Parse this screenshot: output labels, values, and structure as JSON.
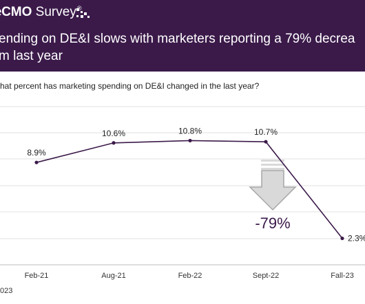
{
  "header": {
    "brand_prefix": "e",
    "brand_bold": "CMO",
    "brand_rest": " Survey",
    "brand_mark": "®",
    "headline_line1": "ending on DE&I slows with marketers reporting a 79% decrea",
    "headline_line2": "m last year",
    "background_color": "#3b1a4a"
  },
  "question": "hat percent has marketing spending on DE&I changed in the last year?",
  "footer": "023",
  "chart_data": {
    "type": "line",
    "categories": [
      "Feb-21",
      "Aug-21",
      "Feb-22",
      "Sept-22",
      "Fall-23"
    ],
    "series": [
      {
        "values": [
          8.9,
          10.6,
          10.8,
          10.7,
          2.3
        ],
        "data_labels": [
          "8.9%",
          "10.6%",
          "10.8%",
          "10.7%",
          "2.3%"
        ],
        "color": "#3b1a4a"
      }
    ],
    "annotation": "-79%",
    "annotation_arrow": "down-arrow",
    "grid": true,
    "ylim": [
      0,
      12.5
    ]
  }
}
